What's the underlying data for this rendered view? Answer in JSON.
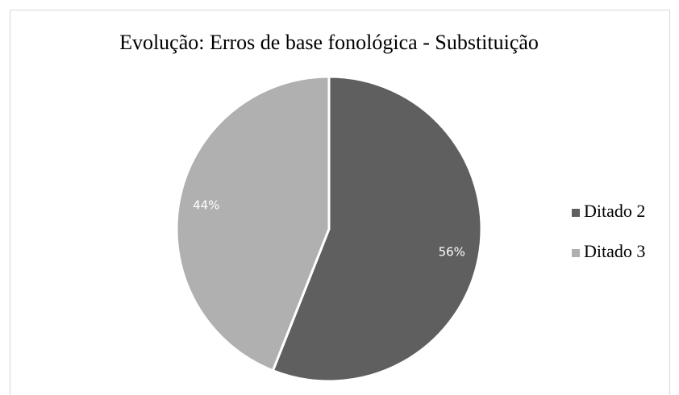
{
  "chart_data": {
    "type": "pie",
    "title": "Evolução: Erros de base fonológica - Substituição",
    "categories": [
      "Ditado 2",
      "Ditado 3"
    ],
    "values": [
      56,
      44
    ],
    "value_labels": [
      "56%",
      "44%"
    ],
    "colors": [
      "#5f5f5f",
      "#b0b0b0"
    ],
    "legend": "right"
  }
}
